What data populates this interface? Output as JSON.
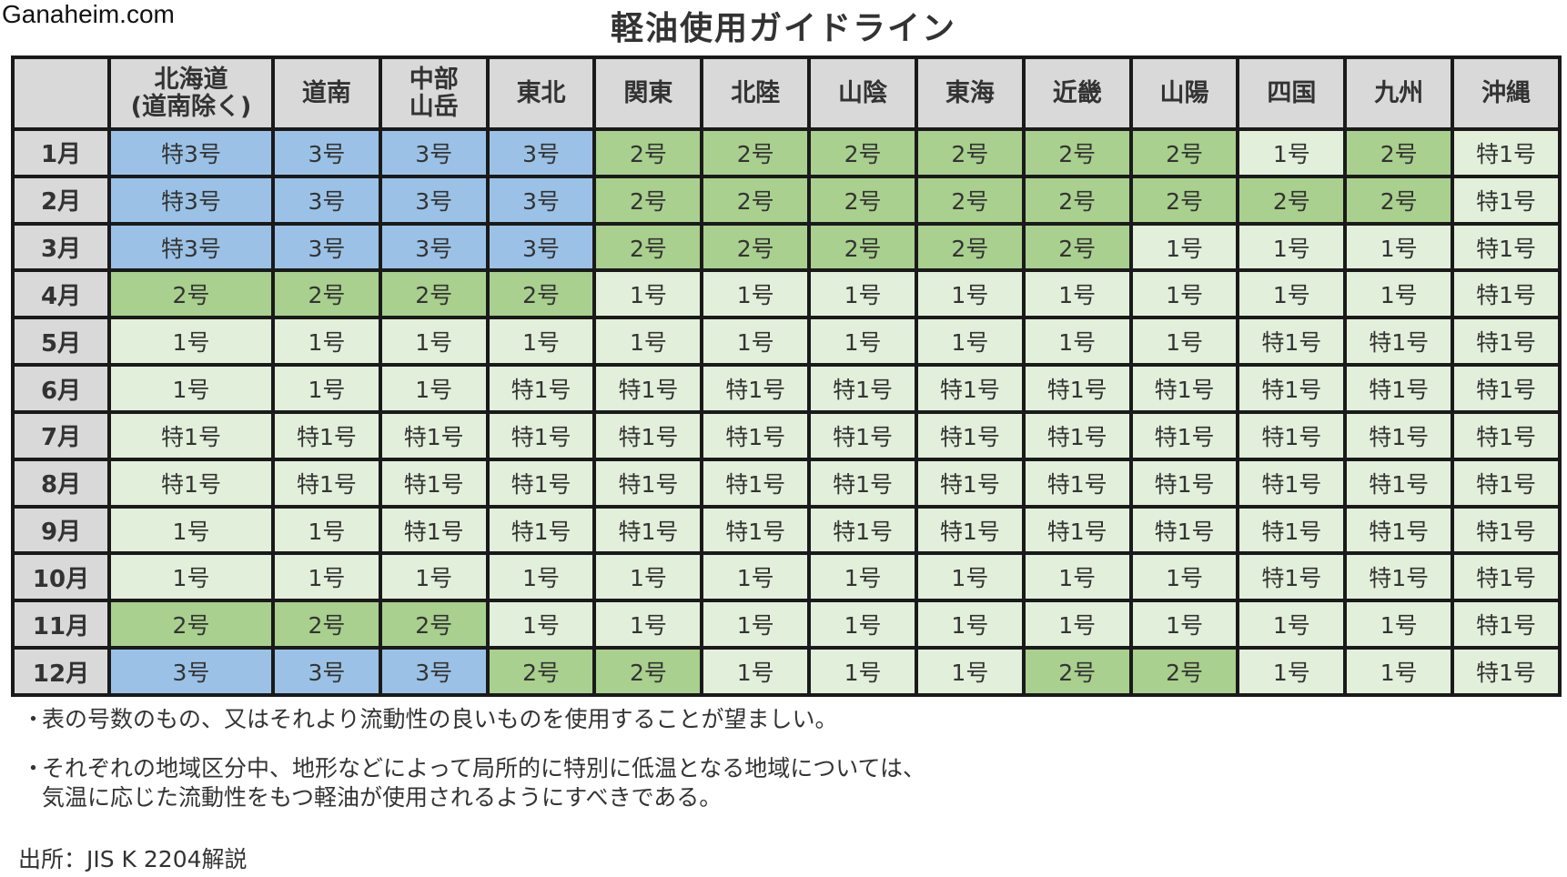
{
  "site": "Ganaheim.com",
  "title": "軽油使用ガイドライン",
  "colors": {
    "header_bg": "#d9d9d9",
    "grade_1": "#e2efda",
    "grade_2": "#a9d08e",
    "grade_3": "#9bc2e6",
    "border": "#1a1a1a"
  },
  "table": {
    "corner": "",
    "regions": [
      "北海道\n(道南除く)",
      "道南",
      "中部\n山岳",
      "東北",
      "関東",
      "北陸",
      "山陰",
      "東海",
      "近畿",
      "山陽",
      "四国",
      "九州",
      "沖縄"
    ],
    "rows": [
      {
        "month": "1月",
        "cells": [
          "特3号",
          "3号",
          "3号",
          "3号",
          "2号",
          "2号",
          "2号",
          "2号",
          "2号",
          "2号",
          "1号",
          "2号",
          "特1号"
        ]
      },
      {
        "month": "2月",
        "cells": [
          "特3号",
          "3号",
          "3号",
          "3号",
          "2号",
          "2号",
          "2号",
          "2号",
          "2号",
          "2号",
          "2号",
          "2号",
          "特1号"
        ]
      },
      {
        "month": "3月",
        "cells": [
          "特3号",
          "3号",
          "3号",
          "3号",
          "2号",
          "2号",
          "2号",
          "2号",
          "2号",
          "1号",
          "1号",
          "1号",
          "特1号"
        ]
      },
      {
        "month": "4月",
        "cells": [
          "2号",
          "2号",
          "2号",
          "2号",
          "1号",
          "1号",
          "1号",
          "1号",
          "1号",
          "1号",
          "1号",
          "1号",
          "特1号"
        ]
      },
      {
        "month": "5月",
        "cells": [
          "1号",
          "1号",
          "1号",
          "1号",
          "1号",
          "1号",
          "1号",
          "1号",
          "1号",
          "1号",
          "特1号",
          "特1号",
          "特1号"
        ]
      },
      {
        "month": "6月",
        "cells": [
          "1号",
          "1号",
          "1号",
          "特1号",
          "特1号",
          "特1号",
          "特1号",
          "特1号",
          "特1号",
          "特1号",
          "特1号",
          "特1号",
          "特1号"
        ]
      },
      {
        "month": "7月",
        "cells": [
          "特1号",
          "特1号",
          "特1号",
          "特1号",
          "特1号",
          "特1号",
          "特1号",
          "特1号",
          "特1号",
          "特1号",
          "特1号",
          "特1号",
          "特1号"
        ]
      },
      {
        "month": "8月",
        "cells": [
          "特1号",
          "特1号",
          "特1号",
          "特1号",
          "特1号",
          "特1号",
          "特1号",
          "特1号",
          "特1号",
          "特1号",
          "特1号",
          "特1号",
          "特1号"
        ]
      },
      {
        "month": "9月",
        "cells": [
          "1号",
          "1号",
          "特1号",
          "特1号",
          "特1号",
          "特1号",
          "特1号",
          "特1号",
          "特1号",
          "特1号",
          "特1号",
          "特1号",
          "特1号"
        ]
      },
      {
        "month": "10月",
        "cells": [
          "1号",
          "1号",
          "1号",
          "1号",
          "1号",
          "1号",
          "1号",
          "1号",
          "1号",
          "1号",
          "特1号",
          "特1号",
          "特1号"
        ]
      },
      {
        "month": "11月",
        "cells": [
          "2号",
          "2号",
          "2号",
          "1号",
          "1号",
          "1号",
          "1号",
          "1号",
          "1号",
          "1号",
          "1号",
          "1号",
          "特1号"
        ]
      },
      {
        "month": "12月",
        "cells": [
          "3号",
          "3号",
          "3号",
          "2号",
          "2号",
          "1号",
          "1号",
          "1号",
          "2号",
          "2号",
          "1号",
          "1号",
          "特1号"
        ]
      }
    ]
  },
  "notes": [
    {
      "bullet": "・",
      "text": "表の号数のもの、又はそれより流動性の良いものを使用することが望ましい。"
    },
    {
      "bullet": "・",
      "text": "それぞれの地域区分中、地形などによって局所的に特別に低温となる地域については、\n気温に応じた流動性をもつ軽油が使用されるようにすべきである。"
    }
  ],
  "source": "出所：JIS K 2204解説"
}
